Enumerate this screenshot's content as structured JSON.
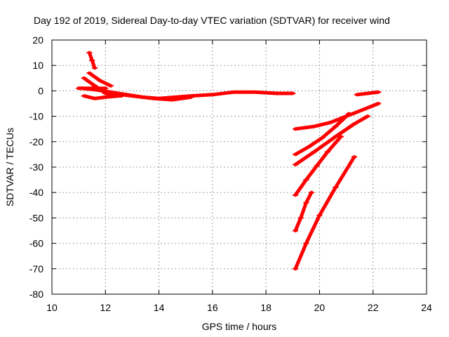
{
  "chart_data": {
    "type": "scatter",
    "title": "Day 192 of 2019, Sidereal Day-to-day VTEC variation (SDTVAR) for receiver wind",
    "xlabel": "GPS time / hours",
    "ylabel": "SDTVAR / TECUs",
    "xlim": [
      10,
      24
    ],
    "ylim": [
      -80,
      20
    ],
    "xticks": [
      10,
      12,
      14,
      16,
      18,
      20,
      22,
      24
    ],
    "yticks": [
      20,
      10,
      0,
      -10,
      -20,
      -30,
      -40,
      -50,
      -60,
      -70,
      -80
    ],
    "xtick_labels": [
      "10",
      "12",
      "14",
      "16",
      "18",
      "20",
      "22",
      "24"
    ],
    "ytick_labels": [
      "20",
      "10",
      "0",
      "-10",
      "-20",
      "-30",
      "-40",
      "-50",
      "-60",
      "-70",
      "-80"
    ],
    "grid": true,
    "color": "#ff0000",
    "series": [
      {
        "x": [
          11.4,
          11.5,
          11.6
        ],
        "y": [
          15,
          12,
          9
        ]
      },
      {
        "x": [
          11.1,
          11.6,
          12.2,
          12.8,
          13.4,
          14.0,
          14.6,
          15.2,
          16.0,
          16.8,
          17.6,
          18.4,
          19.0
        ],
        "y": [
          1,
          0.5,
          -0.5,
          -1.5,
          -2.5,
          -3,
          -2.5,
          -2,
          -1.5,
          -0.5,
          -0.5,
          -1,
          -1
        ]
      },
      {
        "x": [
          11.2,
          11.6,
          12.0,
          12.6
        ],
        "y": [
          5,
          2,
          -1,
          -2
        ]
      },
      {
        "x": [
          11.2,
          11.6,
          12.0,
          12.5
        ],
        "y": [
          -2,
          -3,
          -2.5,
          -2
        ]
      },
      {
        "x": [
          11.0,
          11.5,
          12.0
        ],
        "y": [
          1,
          1,
          1
        ]
      },
      {
        "x": [
          11.4,
          11.8,
          12.2
        ],
        "y": [
          7,
          4,
          2
        ]
      },
      {
        "x": [
          12.2,
          13.0,
          13.8,
          14.5,
          15.2
        ],
        "y": [
          -1,
          -2,
          -3,
          -3.5,
          -2.5
        ]
      },
      {
        "x": [
          19.1,
          19.8,
          20.4,
          21.0,
          21.6,
          22.2
        ],
        "y": [
          -15,
          -14,
          -12.5,
          -10,
          -7.5,
          -5
        ]
      },
      {
        "x": [
          19.1,
          19.6,
          20.1,
          20.6,
          21.1
        ],
        "y": [
          -25,
          -22,
          -18.5,
          -14,
          -9
        ]
      },
      {
        "x": [
          19.1,
          19.8,
          20.6,
          21.3,
          21.8
        ],
        "y": [
          -29,
          -24,
          -18,
          -13,
          -10
        ]
      },
      {
        "x": [
          19.1,
          19.5,
          19.9,
          20.3,
          20.8
        ],
        "y": [
          -41,
          -35,
          -29.5,
          -24,
          -18
        ]
      },
      {
        "x": [
          19.1,
          19.3,
          19.5,
          19.7
        ],
        "y": [
          -55,
          -50,
          -44,
          -40
        ]
      },
      {
        "x": [
          19.1,
          19.5,
          20.0,
          20.6,
          21.3
        ],
        "y": [
          -70,
          -60,
          -49,
          -38,
          -26
        ]
      },
      {
        "x": [
          21.4,
          21.8,
          22.2
        ],
        "y": [
          -1.5,
          -1,
          -0.5
        ]
      }
    ]
  }
}
